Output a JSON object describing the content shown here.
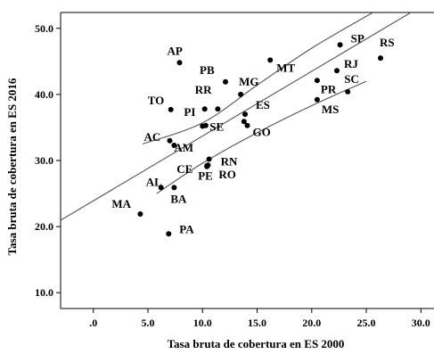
{
  "chart_data": {
    "type": "scatter",
    "title": "",
    "xlabel": "Tasa bruta de cobertura en ES 2000",
    "ylabel": "Tasa bruta de cobertura en ES 2016",
    "xlim": [
      -3,
      31.2
    ],
    "ylim": [
      7.6,
      52.4
    ],
    "x_ticks": [
      0,
      5,
      10,
      15,
      20,
      25,
      30
    ],
    "x_tick_labels": [
      ".0",
      "5.0",
      "10.0",
      "15.0",
      "20.0",
      "25.0",
      "30.0"
    ],
    "y_ticks": [
      10,
      20,
      30,
      40,
      50
    ],
    "y_tick_labels": [
      "10.0",
      "20.0",
      "30.0",
      "40.0",
      "50.0"
    ],
    "grid": false,
    "points": [
      {
        "label": "AP",
        "x": 7.9,
        "y": 44.8
      },
      {
        "label": "SP",
        "x": 22.6,
        "y": 47.5
      },
      {
        "label": "RS",
        "x": 26.3,
        "y": 45.5
      },
      {
        "label": "MT",
        "x": 16.2,
        "y": 45.2
      },
      {
        "label": "PB",
        "x": 12.1,
        "y": 41.9
      },
      {
        "label": "MG",
        "x": 13.5,
        "y": 40.0
      },
      {
        "label": "RJ",
        "x": 22.3,
        "y": 43.6
      },
      {
        "label": "SC",
        "x": 23.3,
        "y": 40.4
      },
      {
        "label": "PR",
        "x": 20.5,
        "y": 42.1
      },
      {
        "label": "MS",
        "x": 20.5,
        "y": 39.2
      },
      {
        "label": "TO",
        "x": 7.1,
        "y": 37.7
      },
      {
        "label": "RR",
        "x": 10.2,
        "y": 37.8
      },
      {
        "label": "PI",
        "x": 11.4,
        "y": 37.8
      },
      {
        "label": "ES",
        "x": 13.9,
        "y": 37.0
      },
      {
        "label": "SE",
        "x": 10.0,
        "y": 35.2
      },
      {
        "label": "",
        "x": 10.3,
        "y": 35.3
      },
      {
        "label": "",
        "x": 13.8,
        "y": 35.9
      },
      {
        "label": "GO",
        "x": 14.1,
        "y": 35.3
      },
      {
        "label": "AC",
        "x": 7.0,
        "y": 33.0
      },
      {
        "label": "AM",
        "x": 7.4,
        "y": 32.3
      },
      {
        "label": "RN",
        "x": 10.6,
        "y": 30.2
      },
      {
        "label": "CE",
        "x": 10.4,
        "y": 29.2
      },
      {
        "label": "RO",
        "x": 10.5,
        "y": 29.3
      },
      {
        "label": "PE",
        "x": 10.4,
        "y": 29.1
      },
      {
        "label": "AL",
        "x": 6.2,
        "y": 25.9
      },
      {
        "label": "BA",
        "x": 7.4,
        "y": 25.9
      },
      {
        "label": "MA",
        "x": 4.3,
        "y": 21.9
      },
      {
        "label": "PA",
        "x": 6.9,
        "y": 18.9
      }
    ],
    "fit_line": {
      "intercept": 23.9,
      "slope": 0.98,
      "x_range": [
        -3,
        31.2
      ]
    },
    "lower_curve": {
      "x": [
        5.8,
        10,
        15,
        20,
        25
      ],
      "y": [
        25.0,
        29.6,
        34.2,
        38.3,
        42.0
      ]
    },
    "upper_curve": {
      "x": [
        4.5,
        10,
        15,
        20,
        25.6
      ],
      "y": [
        32.5,
        35.7,
        41.4,
        47.0,
        52.4
      ]
    }
  }
}
